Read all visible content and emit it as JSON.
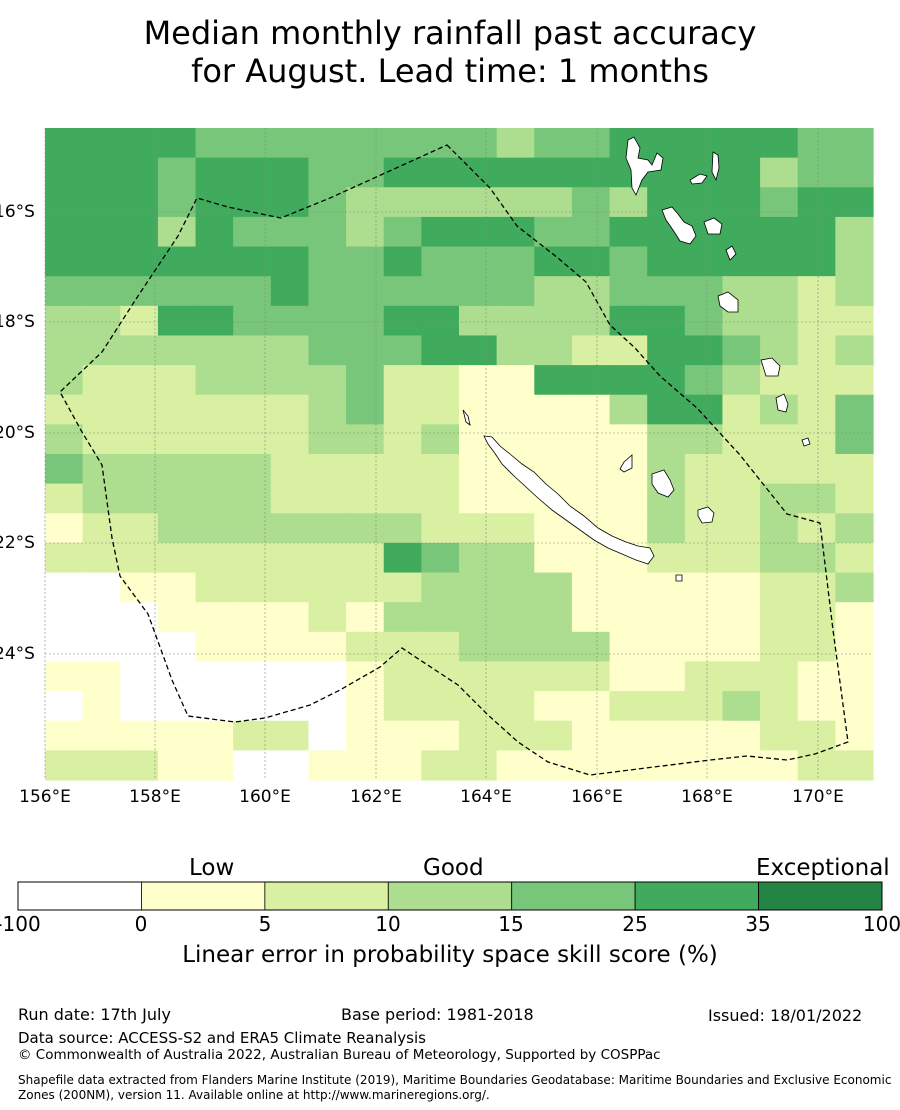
{
  "title": {
    "line1": "Median monthly rainfall past accuracy",
    "line2": "for August. Lead time: 1 months"
  },
  "map": {
    "lon_labels": [
      "156°E",
      "158°E",
      "160°E",
      "162°E",
      "164°E",
      "166°E",
      "168°E",
      "170°E"
    ],
    "lat_labels": [
      "16°S",
      "18°S",
      "20°S",
      "22°S",
      "24°S"
    ],
    "grid_lines": "dotted-grey",
    "boundary_style": "dashed-black",
    "cell_classes": [
      "5555444444443445555544",
      "5554555445555555555344",
      "5554555433333343555455",
      "5553544434555445555553",
      "5555555445444554555553",
      "4444445444444334443323",
      "3325544445533335543322",
      "3333333444553322554323",
      "3222333342211555543222",
      "2222222342211113552324",
      "3222222332311111332224",
      "4333332222211111322222",
      "2333332222211111322332",
      "1223333333222111322323",
      "2222222225433111222332",
      "0011222222333311111223",
      "0001111213333311111221",
      "0000111122233331111221",
      "1100000012222221122211",
      "0100000012222112223211",
      "1111122011122211111221",
      "2221100111221111111122"
    ]
  },
  "colorbar": {
    "categories": [
      "Low",
      "Good",
      "Exceptional"
    ],
    "ticks": [
      "-100",
      "0",
      "5",
      "10",
      "15",
      "25",
      "35",
      "100"
    ],
    "colors": [
      "#ffffff",
      "#ffffcc",
      "#d9f0a3",
      "#addd8e",
      "#78c679",
      "#41ab5d",
      "#238443"
    ],
    "label": "Linear error in probability space skill score (%)"
  },
  "footer": {
    "run_date": "Run date: 17th July",
    "base_period": "Base period: 1981-2018",
    "issued": "Issued: 18/01/2022",
    "data_source": "Data source: ACCESS-S2 and ERA5 Climate Reanalysis",
    "copyright": "© Commonwealth of Australia 2022, Australian Bureau of Meteorology, Supported by COSPPac",
    "shapefile": "Shapefile data extracted from Flanders Marine Institute (2019), Maritime Boundaries Geodatabase: Maritime Boundaries and Exclusive Economic Zones (200NM), version 11. Available online at http://www.marineregions.org/."
  }
}
